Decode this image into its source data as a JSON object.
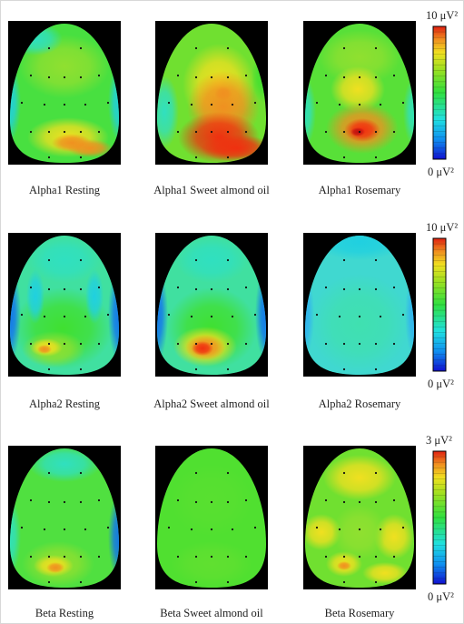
{
  "rows": [
    {
      "panels": [
        {
          "label": "Alpha1 Resting"
        },
        {
          "label": "Alpha1 Sweet almond oil"
        },
        {
          "label": "Alpha1 Rosemary"
        }
      ],
      "colorbar": {
        "max_label": "10 μV²",
        "min_label": "0 μV²"
      }
    },
    {
      "panels": [
        {
          "label": "Alpha2 Resting"
        },
        {
          "label": "Alpha2 Sweet almond oil"
        },
        {
          "label": "Alpha2 Rosemary"
        }
      ],
      "colorbar": {
        "max_label": "10 μV²",
        "min_label": "0 μV²"
      }
    },
    {
      "panels": [
        {
          "label": "Beta Resting"
        },
        {
          "label": "Beta Sweet almond oil"
        },
        {
          "label": "Beta Rosemary"
        }
      ],
      "colorbar": {
        "max_label": "3 μV²",
        "min_label": "0 μV²"
      }
    }
  ]
}
